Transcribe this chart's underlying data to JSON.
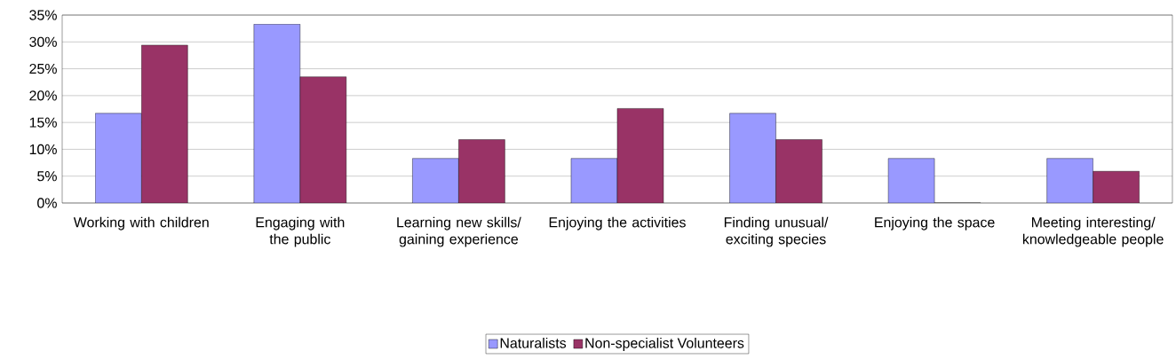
{
  "chart_data": {
    "type": "bar",
    "categories": [
      "Working with children",
      "Engaging with the public",
      "Learning new skills/ gaining experience",
      "Enjoying the activities",
      "Finding unusual/ exciting species",
      "Enjoying the space",
      "Meeting interesting/ knowledgeable people"
    ],
    "series": [
      {
        "name": "Naturalists",
        "color": "#9999ff",
        "values": [
          16.7,
          33.3,
          8.3,
          8.3,
          16.7,
          8.3,
          8.3
        ]
      },
      {
        "name": "Non-specialist Volunteers",
        "color": "#993366",
        "values": [
          29.4,
          23.5,
          11.8,
          17.6,
          11.8,
          0,
          5.9
        ]
      }
    ],
    "ylim": [
      0,
      35
    ],
    "yticks": [
      {
        "value": 0,
        "label": "0%"
      },
      {
        "value": 5,
        "label": "5%"
      },
      {
        "value": 10,
        "label": "10%"
      },
      {
        "value": 15,
        "label": "15%"
      },
      {
        "value": 20,
        "label": "20%"
      },
      {
        "value": 25,
        "label": "25%"
      },
      {
        "value": 30,
        "label": "30%"
      },
      {
        "value": 35,
        "label": "35%"
      }
    ],
    "grid": "y",
    "legend": "bottom"
  }
}
